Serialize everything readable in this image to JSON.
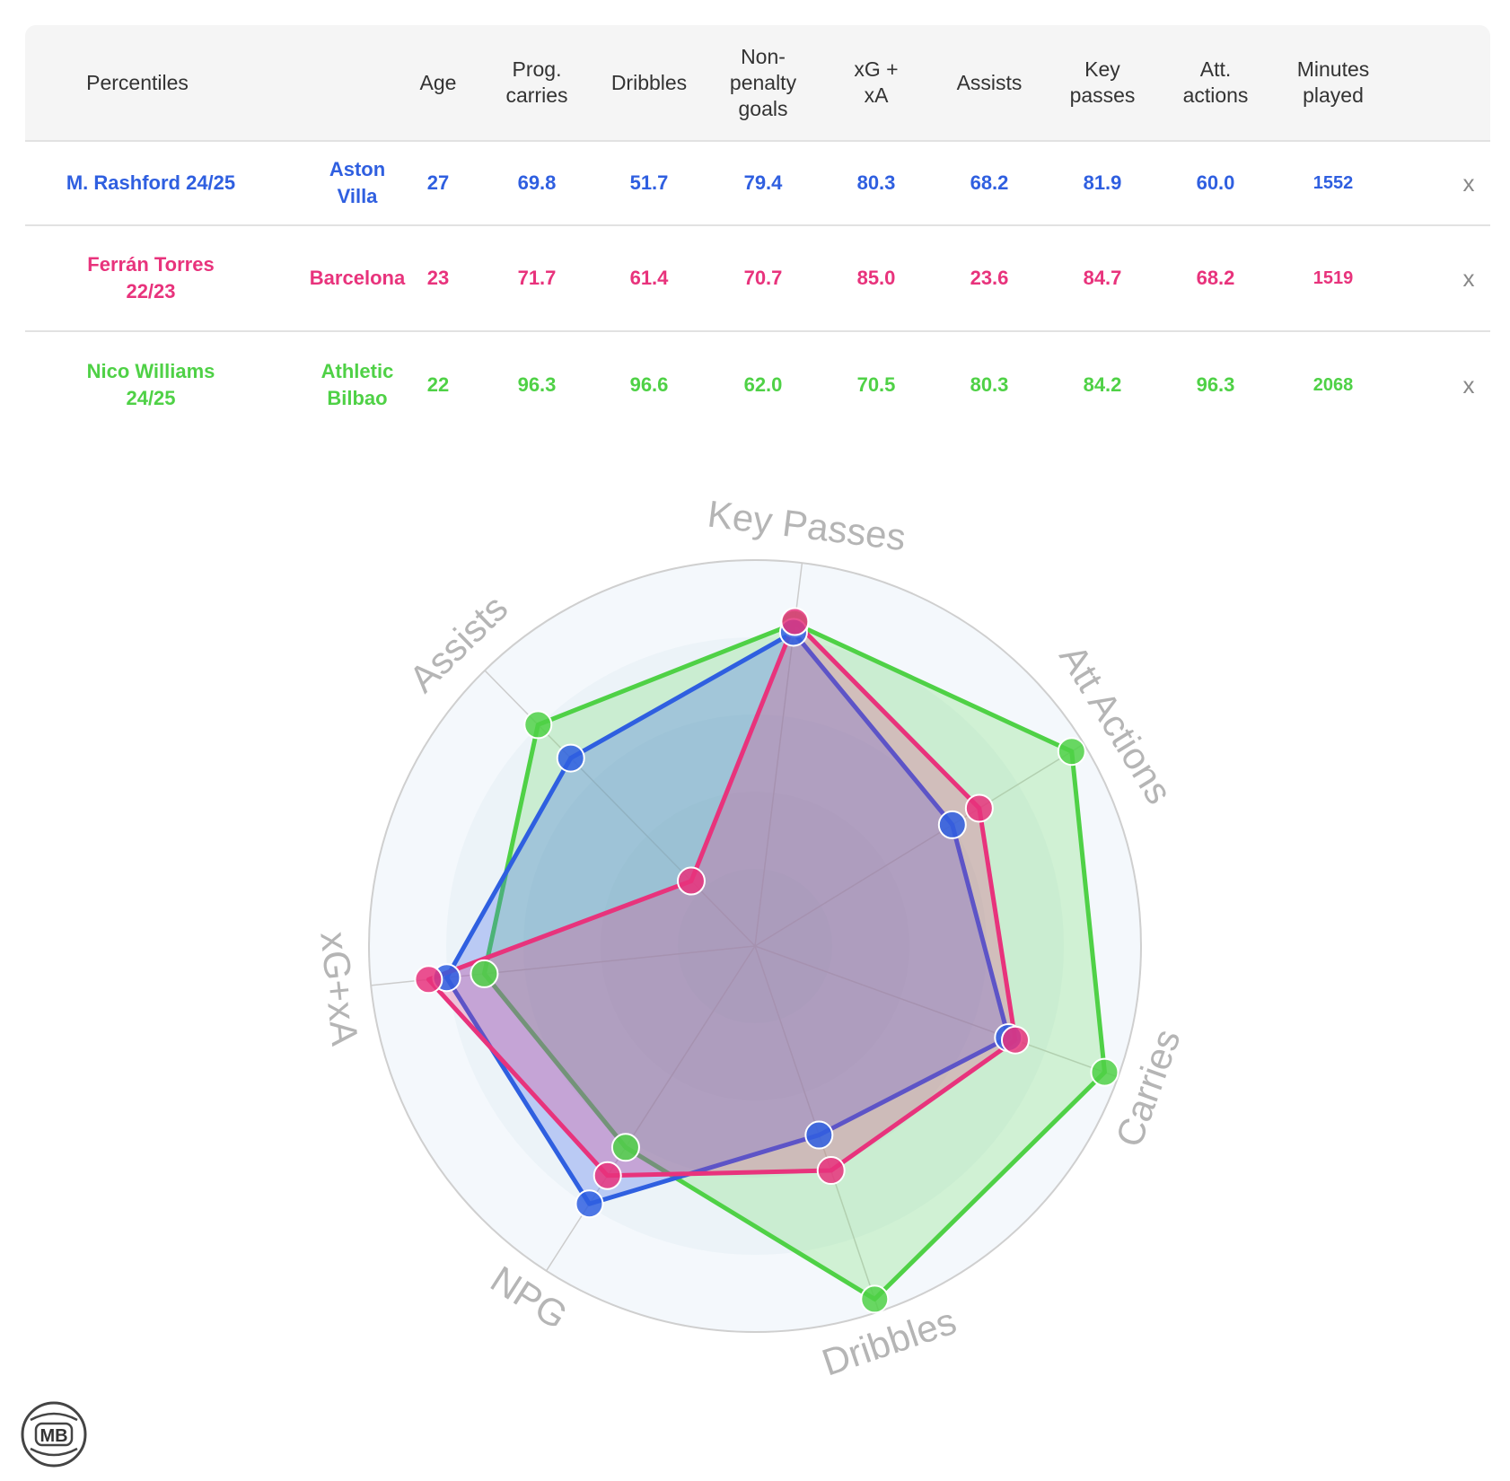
{
  "table": {
    "headers": {
      "percentiles": "Percentiles",
      "age": "Age",
      "prog_carries": [
        "Prog.",
        "carries"
      ],
      "dribbles": "Dribbles",
      "npg": [
        "Non-",
        "penalty",
        "goals"
      ],
      "xgxa": [
        "xG +",
        "xA"
      ],
      "assists": "Assists",
      "key_passes": [
        "Key",
        "passes"
      ],
      "att_actions": [
        "Att.",
        "actions"
      ],
      "minutes": [
        "Minutes",
        "played"
      ]
    },
    "close_label": "x",
    "rows": [
      {
        "player": [
          "M. Rashford 24/25"
        ],
        "team": [
          "Aston",
          "Villa"
        ],
        "age": "27",
        "prog_carries": "69.8",
        "dribbles": "51.7",
        "npg": "79.4",
        "xgxa": "80.3",
        "assists": "68.2",
        "key_passes": "81.9",
        "att_actions": "60.0",
        "minutes": "1552",
        "color": "#2f5fe0"
      },
      {
        "player": [
          "Ferrán Torres",
          "22/23"
        ],
        "team": [
          "Barcelona"
        ],
        "age": "23",
        "prog_carries": "71.7",
        "dribbles": "61.4",
        "npg": "70.7",
        "xgxa": "85.0",
        "assists": "23.6",
        "key_passes": "84.7",
        "att_actions": "68.2",
        "minutes": "1519",
        "color": "#e8337c"
      },
      {
        "player": [
          "Nico Williams",
          "24/25"
        ],
        "team": [
          "Athletic",
          "Bilbao"
        ],
        "age": "22",
        "prog_carries": "96.3",
        "dribbles": "96.6",
        "npg": "62.0",
        "xgxa": "70.5",
        "assists": "80.3",
        "key_passes": "84.2",
        "att_actions": "96.3",
        "minutes": "2068",
        "color": "#4fd146"
      }
    ]
  },
  "chart_data": {
    "type": "radar",
    "axes": [
      "Key Passes",
      "Att Actions",
      "Carries",
      "Dribbles",
      "NPG",
      "xG+xA",
      "Assists"
    ],
    "range": [
      0,
      100
    ],
    "series": [
      {
        "name": "M. Rashford 24/25",
        "color": "#2f5fe0",
        "values": [
          81.9,
          60.0,
          69.8,
          51.7,
          79.4,
          80.3,
          68.2
        ]
      },
      {
        "name": "Ferrán Torres 22/23",
        "color": "#e8337c",
        "values": [
          84.7,
          68.2,
          71.7,
          61.4,
          70.7,
          85.0,
          23.6
        ]
      },
      {
        "name": "Nico Williams 24/25",
        "color": "#4fd146",
        "values": [
          84.2,
          96.3,
          96.3,
          96.6,
          62.0,
          70.5,
          80.3
        ]
      }
    ],
    "grid": true
  },
  "logo": {
    "text": "MB",
    "icon": "ball-logo-icon"
  }
}
